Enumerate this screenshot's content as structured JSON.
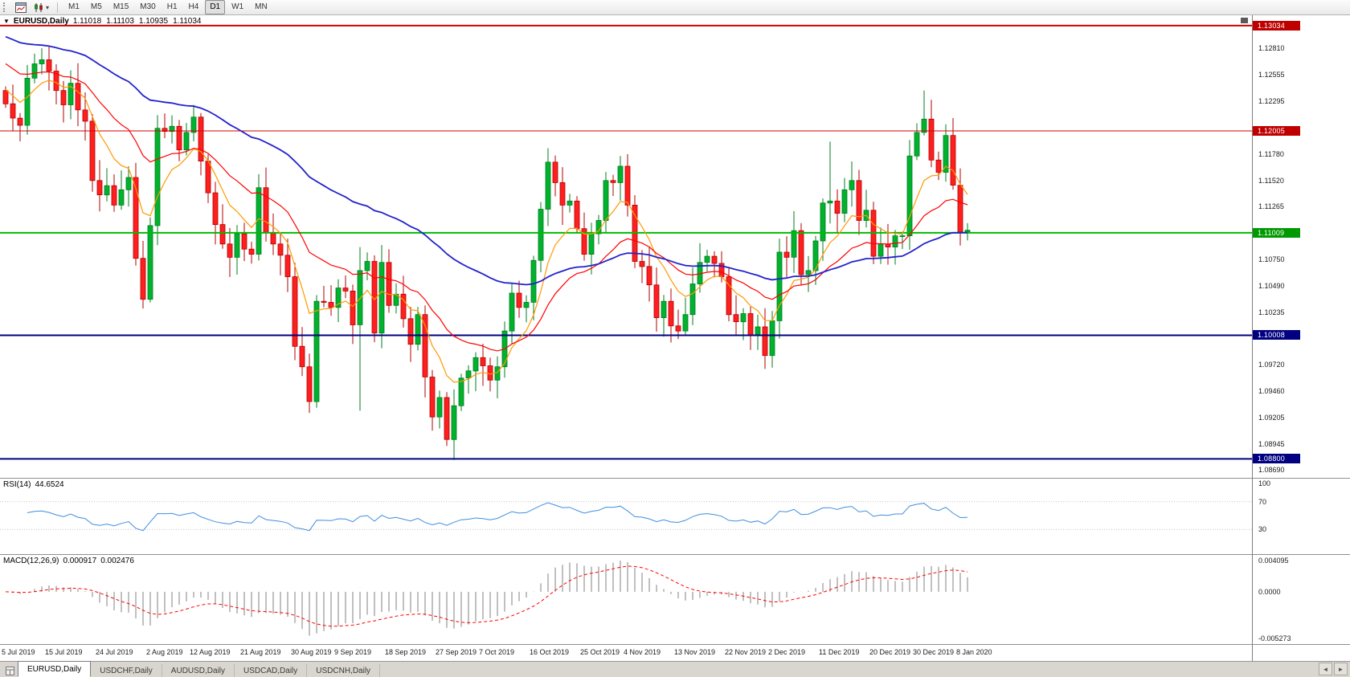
{
  "toolbar": {
    "timeframes": [
      "M1",
      "M5",
      "M15",
      "M30",
      "H1",
      "H4",
      "D1",
      "W1",
      "MN"
    ],
    "active_timeframe": "D1",
    "chart_type_caret": "▾"
  },
  "chart": {
    "header": {
      "collapse_arrow": "▼",
      "symbol": "EURUSD,Daily",
      "open": "1.11018",
      "high": "1.11103",
      "low": "1.10935",
      "close": "1.11034"
    }
  },
  "rsi_panel": {
    "name": "RSI(14)",
    "value": "44.6524",
    "axis_labels": [
      "100",
      "70",
      "30"
    ],
    "levels": [
      70,
      30
    ],
    "line_color": "#3f8ede"
  },
  "macd_panel": {
    "name": "MACD(12,26,9)",
    "value_main": "0.000917",
    "value_signal": "0.002476",
    "axis_top": "0.004095",
    "axis_zero": "0.0000",
    "axis_bottom": "-0.005273",
    "hist_color": "#a6a6a6",
    "signal_color": "#ff0000"
  },
  "tabs": {
    "items": [
      "EURUSD,Daily",
      "USDCHF,Daily",
      "AUDUSD,Daily",
      "USDCAD,Daily",
      "USDCNH,Daily"
    ],
    "active_index": 0,
    "scroll_left": "◄",
    "scroll_right": "►"
  },
  "chart_data": {
    "type": "candlestick",
    "symbol": "EURUSD",
    "timeframe": "Daily",
    "price_scale": {
      "top": 1.13135,
      "bottom": 1.08615
    },
    "first_open": 1.124,
    "closes": [
      1.1227,
      1.1213,
      1.1206,
      1.1252,
      1.1266,
      1.127,
      1.1259,
      1.124,
      1.1226,
      1.1247,
      1.1221,
      1.121,
      1.1152,
      1.1138,
      1.1147,
      1.1128,
      1.1143,
      1.1155,
      1.1076,
      1.1036,
      1.1108,
      1.1203,
      1.12,
      1.1205,
      1.1182,
      1.1199,
      1.1214,
      1.1171,
      1.114,
      1.1109,
      1.109,
      1.1077,
      1.11,
      1.1085,
      1.108,
      1.1145,
      1.1101,
      1.109,
      1.1079,
      1.1058,
      1.099,
      1.097,
      1.0936,
      1.1034,
      1.1033,
      1.1028,
      1.1047,
      1.1044,
      1.1011,
      1.1064,
      1.1073,
      1.1003,
      1.1072,
      1.103,
      1.1041,
      1.1017,
      1.0992,
      1.1021,
      1.096,
      1.0921,
      1.094,
      1.0899,
      1.0932,
      1.0959,
      1.0966,
      1.0979,
      1.0971,
      1.0957,
      1.097,
      1.1005,
      1.1042,
      1.1028,
      1.1033,
      1.1074,
      1.1124,
      1.117,
      1.115,
      1.1128,
      1.1132,
      1.1105,
      1.108,
      1.11,
      1.1113,
      1.1152,
      1.115,
      1.1166,
      1.1128,
      1.1073,
      1.1068,
      1.105,
      1.1018,
      1.1034,
      1.101,
      1.1005,
      1.1021,
      1.1051,
      1.1072,
      1.1078,
      1.1071,
      1.1058,
      1.1021,
      1.1014,
      1.1022,
      1.1001,
      1.1009,
      1.0981,
      1.1015,
      1.1082,
      1.1077,
      1.1103,
      1.106,
      1.1064,
      1.1093,
      1.113,
      1.1132,
      1.112,
      1.1143,
      1.1152,
      1.1113,
      1.1123,
      1.1078,
      1.109,
      1.1087,
      1.1098,
      1.1098,
      1.1176,
      1.1199,
      1.1212,
      1.1172,
      1.116,
      1.1196,
      1.11474,
      1.11018,
      1.11034
    ],
    "wick_overrides": {
      "19": [
        1.1093,
        1.1027
      ],
      "20": [
        1.1116,
        1.1033
      ],
      "42": [
        1.0983,
        1.0925
      ],
      "43": [
        1.104,
        1.093
      ],
      "49": [
        1.1087,
        1.0927
      ],
      "62": [
        1.0948,
        1.0879
      ],
      "114": [
        1.119,
        1.111
      ],
      "127": [
        1.124,
        1.1196
      ],
      "133": [
        1.11103,
        1.10935
      ]
    },
    "candle_colors": {
      "up": "#00b22d",
      "up_dark": "#007c1f",
      "down": "#ff1f1f",
      "down_dark": "#b00000"
    },
    "moving_averages": [
      {
        "period": 8,
        "color": "#ff9900",
        "width": 1.2,
        "seed": 1.1245,
        "name": "ma-fast-line"
      },
      {
        "period": 21,
        "color": "#ff0000",
        "width": 1.2,
        "seed": 1.127,
        "name": "ma-medium-line"
      },
      {
        "period": 55,
        "color": "#2222cc",
        "width": 1.8,
        "seed": 1.1295,
        "name": "ma-slow-line"
      }
    ],
    "hlines": [
      {
        "price": 1.13034,
        "label": "1.13034",
        "color": "#d40000",
        "width": 2,
        "badge": "#c00000"
      },
      {
        "price": 1.12005,
        "label": "1.12005",
        "color": "#d40000",
        "width": 1,
        "badge": "#c00000"
      },
      {
        "price": 1.11009,
        "label": "1.11009",
        "color": "#00bb00",
        "width": 2,
        "badge": "#009900"
      },
      {
        "price": 1.10008,
        "label": "1.10008",
        "color": "#000080",
        "width": 2,
        "badge": "#000080"
      },
      {
        "price": 1.088,
        "label": "1.08800",
        "color": "#000080",
        "width": 2,
        "badge": "#000080"
      }
    ],
    "price_ticks": [
      "1.12810",
      "1.12555",
      "1.12295",
      "1.11780",
      "1.11520",
      "1.11265",
      "1.10750",
      "1.10490",
      "1.10235",
      "1.09720",
      "1.09460",
      "1.09205",
      "1.08945",
      "1.08690"
    ],
    "x_ticks": [
      {
        "i": 0,
        "label": "5 Jul 2019"
      },
      {
        "i": 6,
        "label": "15 Jul 2019"
      },
      {
        "i": 13,
        "label": "24 Jul 2019"
      },
      {
        "i": 20,
        "label": "2 Aug 2019"
      },
      {
        "i": 26,
        "label": "12 Aug 2019"
      },
      {
        "i": 33,
        "label": "21 Aug 2019"
      },
      {
        "i": 40,
        "label": "30 Aug 2019"
      },
      {
        "i": 46,
        "label": "9 Sep 2019"
      },
      {
        "i": 53,
        "label": "18 Sep 2019"
      },
      {
        "i": 60,
        "label": "27 Sep 2019"
      },
      {
        "i": 66,
        "label": "7 Oct 2019"
      },
      {
        "i": 73,
        "label": "16 Oct 2019"
      },
      {
        "i": 80,
        "label": "25 Oct 2019"
      },
      {
        "i": 86,
        "label": "4 Nov 2019"
      },
      {
        "i": 93,
        "label": "13 Nov 2019"
      },
      {
        "i": 100,
        "label": "22 Nov 2019"
      },
      {
        "i": 106,
        "label": "2 Dec 2019"
      },
      {
        "i": 113,
        "label": "11 Dec 2019"
      },
      {
        "i": 120,
        "label": "20 Dec 2019"
      },
      {
        "i": 126,
        "label": "30 Dec 2019"
      },
      {
        "i": 132,
        "label": "8 Jan 2020"
      }
    ],
    "rsi": {
      "period": 14
    },
    "macd": {
      "fast": 12,
      "slow": 26,
      "signal": 9
    }
  }
}
